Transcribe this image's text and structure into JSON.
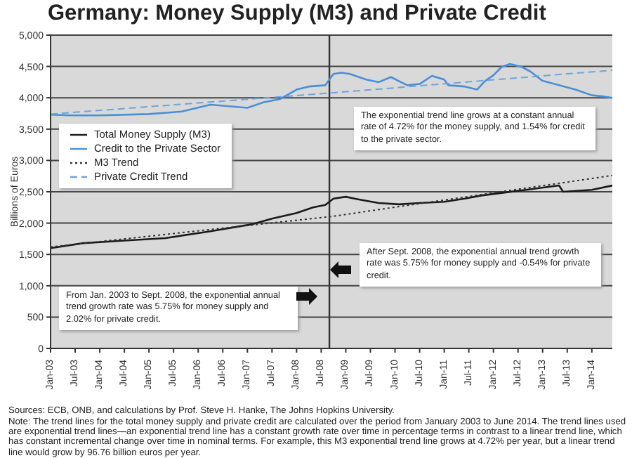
{
  "chart_data": {
    "type": "line",
    "title": "Germany: Money Supply (M3) and Private Credit",
    "ylabel": "Billions of Euros",
    "xlim": [
      "2003-01",
      "2014-06"
    ],
    "xticks": [
      {
        "value": "2003-01",
        "label": "Jan-03"
      },
      {
        "value": "2003-07",
        "label": "Jul-03"
      },
      {
        "value": "2004-01",
        "label": "Jan-04"
      },
      {
        "value": "2004-07",
        "label": "Jul-04"
      },
      {
        "value": "2005-01",
        "label": "Jan-05"
      },
      {
        "value": "2005-07",
        "label": "Jul-05"
      },
      {
        "value": "2006-01",
        "label": "Jan-06"
      },
      {
        "value": "2006-07",
        "label": "Jul-06"
      },
      {
        "value": "2007-01",
        "label": "Jan-07"
      },
      {
        "value": "2007-07",
        "label": "Jul-07"
      },
      {
        "value": "2008-01",
        "label": "Jan-08"
      },
      {
        "value": "2008-07",
        "label": "Jul-08"
      },
      {
        "value": "2009-01",
        "label": "Jan-09"
      },
      {
        "value": "2009-07",
        "label": "Jul-09"
      },
      {
        "value": "2010-01",
        "label": "Jan-10"
      },
      {
        "value": "2010-07",
        "label": "Jul-10"
      },
      {
        "value": "2011-01",
        "label": "Jan-11"
      },
      {
        "value": "2011-07",
        "label": "Jul-11"
      },
      {
        "value": "2012-01",
        "label": "Jan-12"
      },
      {
        "value": "2012-07",
        "label": "Jul-12"
      },
      {
        "value": "2013-01",
        "label": "Jan-13"
      },
      {
        "value": "2013-07",
        "label": "Jul-13"
      },
      {
        "value": "2014-01",
        "label": "Jan-14"
      }
    ],
    "ylim": [
      0,
      5000
    ],
    "yticks": [
      0,
      {
        "value": 500,
        "label": "500"
      },
      {
        "value": 1000,
        "label": "1,000"
      },
      {
        "value": 1500,
        "label": "1,500"
      },
      {
        "value": 2000,
        "label": "2,000"
      },
      {
        "value": 2500,
        "label": "2,500"
      },
      {
        "value": 3000,
        "label": "3,000"
      },
      {
        "value": 3500,
        "label": "3,500"
      },
      {
        "value": 4000,
        "label": "4,000"
      },
      {
        "value": 4500,
        "label": "4,500"
      },
      {
        "value": 5000,
        "label": "5,000"
      }
    ],
    "grid": "y",
    "legend": "left",
    "series": [
      {
        "name": "Total Money Supply (M3)",
        "color": "#1a1a1a",
        "x": [
          "2003-01",
          "2003-09",
          "2004-07",
          "2005-05",
          "2006-04",
          "2007-02",
          "2007-07",
          "2008-01",
          "2008-05",
          "2008-08",
          "2008-10",
          "2009-01",
          "2009-04",
          "2009-09",
          "2010-02",
          "2010-07",
          "2011-01",
          "2011-06",
          "2011-10",
          "2012-04",
          "2012-10",
          "2013-05",
          "2013-06",
          "2014-01",
          "2014-06"
        ],
        "values": [
          1600,
          1680,
          1720,
          1760,
          1870,
          1980,
          2070,
          2160,
          2250,
          2290,
          2390,
          2420,
          2380,
          2320,
          2300,
          2320,
          2340,
          2390,
          2440,
          2490,
          2540,
          2600,
          2500,
          2530,
          2600
        ]
      },
      {
        "name": "Credit to the Private Sector",
        "color": "#4a8fd6",
        "x": [
          "2003-01",
          "2003-06",
          "2004-01",
          "2005-01",
          "2005-09",
          "2006-04",
          "2007-01",
          "2007-05",
          "2007-09",
          "2008-01",
          "2008-04",
          "2008-08",
          "2008-10",
          "2008-12",
          "2009-02",
          "2009-06",
          "2009-09",
          "2009-12",
          "2010-04",
          "2010-07",
          "2010-10",
          "2011-01",
          "2011-02",
          "2011-06",
          "2011-09",
          "2011-11",
          "2012-01",
          "2012-03",
          "2012-05",
          "2012-08",
          "2012-10",
          "2013-01",
          "2013-05",
          "2013-09",
          "2014-01",
          "2014-04",
          "2014-06"
        ],
        "values": [
          3730,
          3720,
          3720,
          3740,
          3780,
          3890,
          3840,
          3930,
          3980,
          4130,
          4180,
          4200,
          4380,
          4400,
          4380,
          4290,
          4250,
          4330,
          4200,
          4220,
          4350,
          4290,
          4200,
          4180,
          4130,
          4270,
          4360,
          4490,
          4540,
          4490,
          4420,
          4270,
          4200,
          4130,
          4040,
          4020,
          4000
        ]
      },
      {
        "name": "M3 Trend",
        "color": "#333333",
        "line_style": "dotted",
        "x": [
          "2003-01",
          "2008-10",
          "2014-06"
        ],
        "values": [
          1620,
          2110,
          2760
        ]
      },
      {
        "name": "Private Credit Trend",
        "color": "#6fa3dc",
        "line_style": "dashed",
        "x": [
          "2003-01",
          "2008-10",
          "2014-06"
        ],
        "values": [
          3740,
          4080,
          4440
        ]
      }
    ],
    "ref_lines": [
      {
        "axis": "x",
        "value": "2008-09",
        "color": "#333333"
      }
    ],
    "annotations": [
      "The exponential trend line grows at a constant annual rate of 4.72% for the money supply, and 1.54% for credit to the private sector.",
      "After Sept. 2008, the exponential annual trend growth rate was 5.75% for money supply and -0.54% for private credit.",
      "From Jan. 2003 to Sept. 2008, the exponential annual trend growth rate was 5.75% for money supply and 2.02% for private credit.",
      "Sources: ECB, ONB, and calculations by Prof. Steve H. Hanke,  The Johns Hopkins University.",
      "Note: The trend lines for the total money supply and private credit are calculated over the period from January 2003 to June 2014. The trend lines used are exponential trend lines—an exponential trend line has a constant growth rate over time in percentage terms in contrast to a linear trend line, which has constant incremental change over time in nominal terms. For example, this M3 exponential trend line grows at 4.72% per year, but a linear trend line would grow by 96.76 billion euros per year."
    ]
  }
}
